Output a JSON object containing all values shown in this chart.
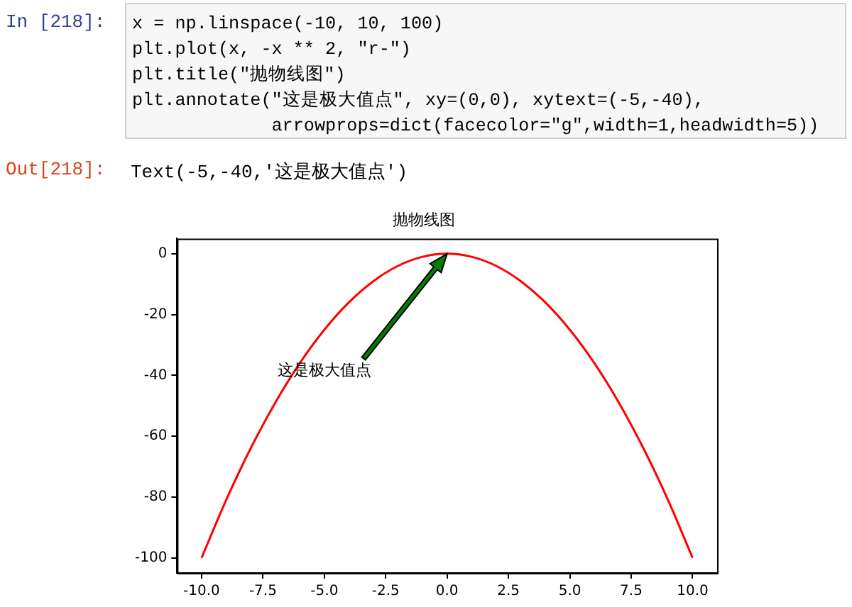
{
  "chart_data": {
    "type": "line",
    "title": "抛物线图",
    "x": [
      -10,
      -9,
      -8,
      -7,
      -6,
      -5,
      -4,
      -3,
      -2,
      -1,
      0,
      1,
      2,
      3,
      4,
      5,
      6,
      7,
      8,
      9,
      10
    ],
    "series": [
      {
        "color": "#ff0000",
        "values": [
          -100,
          -81,
          -64,
          -49,
          -36,
          -25,
          -16,
          -9,
          -4,
          -1,
          0,
          -1,
          -4,
          -9,
          -16,
          -25,
          -36,
          -49,
          -64,
          -81,
          -100
        ]
      }
    ],
    "xlim": [
      -11,
      11
    ],
    "xticks": [
      {
        "value": -10,
        "label": "-10.0"
      },
      {
        "value": -7.5,
        "label": "-7.5"
      },
      {
        "value": -5,
        "label": "-5.0"
      },
      {
        "value": -2.5,
        "label": "-2.5"
      },
      {
        "value": 0,
        "label": "0.0"
      },
      {
        "value": 2.5,
        "label": "2.5"
      },
      {
        "value": 5,
        "label": "5.0"
      },
      {
        "value": 7.5,
        "label": "7.5"
      },
      {
        "value": 10,
        "label": "10.0"
      }
    ],
    "ylim": [
      -105,
      5
    ],
    "yticks": [
      -100,
      -80,
      -60,
      -40,
      -20,
      0
    ],
    "grid": false,
    "legend": false,
    "marker": "none",
    "line_style": "solid",
    "annotations": [
      "In [218]:",
      "x = np.linspace(-10, 10, 100)",
      "plt.plot(x, -x ** 2, \"r-\")",
      "plt.title(\"抛物线图\")",
      "plt.annotate(\"这是极大值点\", xy=(0,0), xytext=(-5,-40),",
      "             arrowprops=dict(facecolor=\"g\",width=1,headwidth=5))",
      "Out[218]:",
      "Text(-5,-40,'这是极大值点')",
      "这是极大值点"
    ]
  }
}
